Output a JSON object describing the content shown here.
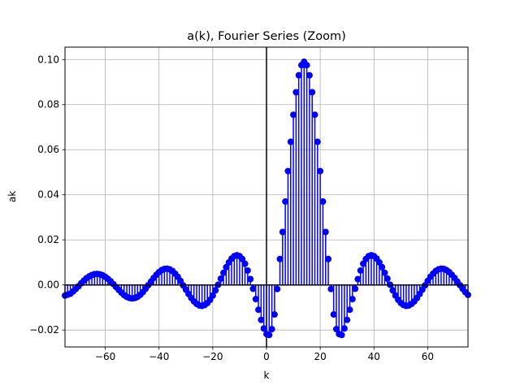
{
  "chart_data": {
    "type": "stem",
    "title": "a(k), Fourier Series (Zoom)",
    "xlabel": "k",
    "ylabel": "ak",
    "xlim": [
      -75,
      75
    ],
    "ylim": [
      -0.0275,
      0.1055
    ],
    "x_ticks": [
      -60,
      -40,
      -20,
      0,
      20,
      40,
      60
    ],
    "x_tick_labels": [
      "−60",
      "−40",
      "−20",
      "0",
      "20",
      "40",
      "60"
    ],
    "y_ticks": [
      -0.02,
      0.0,
      0.02,
      0.04,
      0.06,
      0.08,
      0.1
    ],
    "y_tick_labels": [
      "−0.02",
      "0.00",
      "0.02",
      "0.04",
      "0.06",
      "0.08",
      "0.10"
    ],
    "grid": true,
    "legend": "none",
    "series": [
      {
        "color": "#0000ff",
        "k_start": -75,
        "k_end": 75,
        "values": [
          -0.0047,
          -0.0043,
          -0.0039,
          -0.0029,
          -0.0018,
          -0.0006,
          0.0007,
          0.0019,
          0.003,
          0.0038,
          0.0044,
          0.0048,
          0.0049,
          0.0047,
          0.0043,
          0.0036,
          0.0027,
          0.0016,
          0.0004,
          -0.0009,
          -0.0022,
          -0.0034,
          -0.0045,
          -0.0053,
          -0.0058,
          -0.006,
          -0.0058,
          -0.0053,
          -0.0044,
          -0.0032,
          -0.0017,
          -0.0001,
          0.0015,
          0.0031,
          0.0045,
          0.0057,
          0.0066,
          0.0071,
          0.0072,
          0.0069,
          0.0062,
          0.005,
          0.0036,
          0.0018,
          -0.0002,
          -0.0021,
          -0.004,
          -0.0058,
          -0.0073,
          -0.0084,
          -0.0091,
          -0.0093,
          -0.0089,
          -0.008,
          -0.0066,
          -0.0047,
          -0.0024,
          0.0001,
          0.0028,
          0.0054,
          0.0079,
          0.01,
          0.0117,
          0.0128,
          0.0132,
          0.0128,
          0.0115,
          0.0094,
          0.0064,
          0.0026,
          -0.0017,
          -0.0063,
          -0.011,
          -0.0155,
          -0.0193,
          -0.0218,
          -0.0222,
          -0.0196,
          -0.0131,
          -0.0018,
          0.0115,
          0.0235,
          0.037,
          0.0505,
          0.0635,
          0.0755,
          0.0855,
          0.093,
          0.0975,
          0.099,
          0.0975,
          0.093,
          0.0855,
          0.0755,
          0.0635,
          0.0505,
          0.037,
          0.0235,
          0.0115,
          -0.0018,
          -0.0131,
          -0.0196,
          -0.0218,
          -0.0222,
          -0.0193,
          -0.0155,
          -0.011,
          -0.0063,
          -0.0017,
          0.0026,
          0.0064,
          0.0094,
          0.0115,
          0.0128,
          0.0132,
          0.0128,
          0.0117,
          0.01,
          0.0079,
          0.0054,
          0.0028,
          0.0001,
          -0.0024,
          -0.0047,
          -0.0066,
          -0.008,
          -0.0089,
          -0.0093,
          -0.0091,
          -0.0084,
          -0.0073,
          -0.0058,
          -0.004,
          -0.0021,
          -0.0002,
          0.0018,
          0.0036,
          0.005,
          0.0062,
          0.0069,
          0.0072,
          0.0071,
          0.0066,
          0.0057,
          0.0045,
          0.0031,
          0.0015,
          -0.0001,
          -0.0017,
          -0.0032,
          -0.0044
        ]
      }
    ]
  }
}
